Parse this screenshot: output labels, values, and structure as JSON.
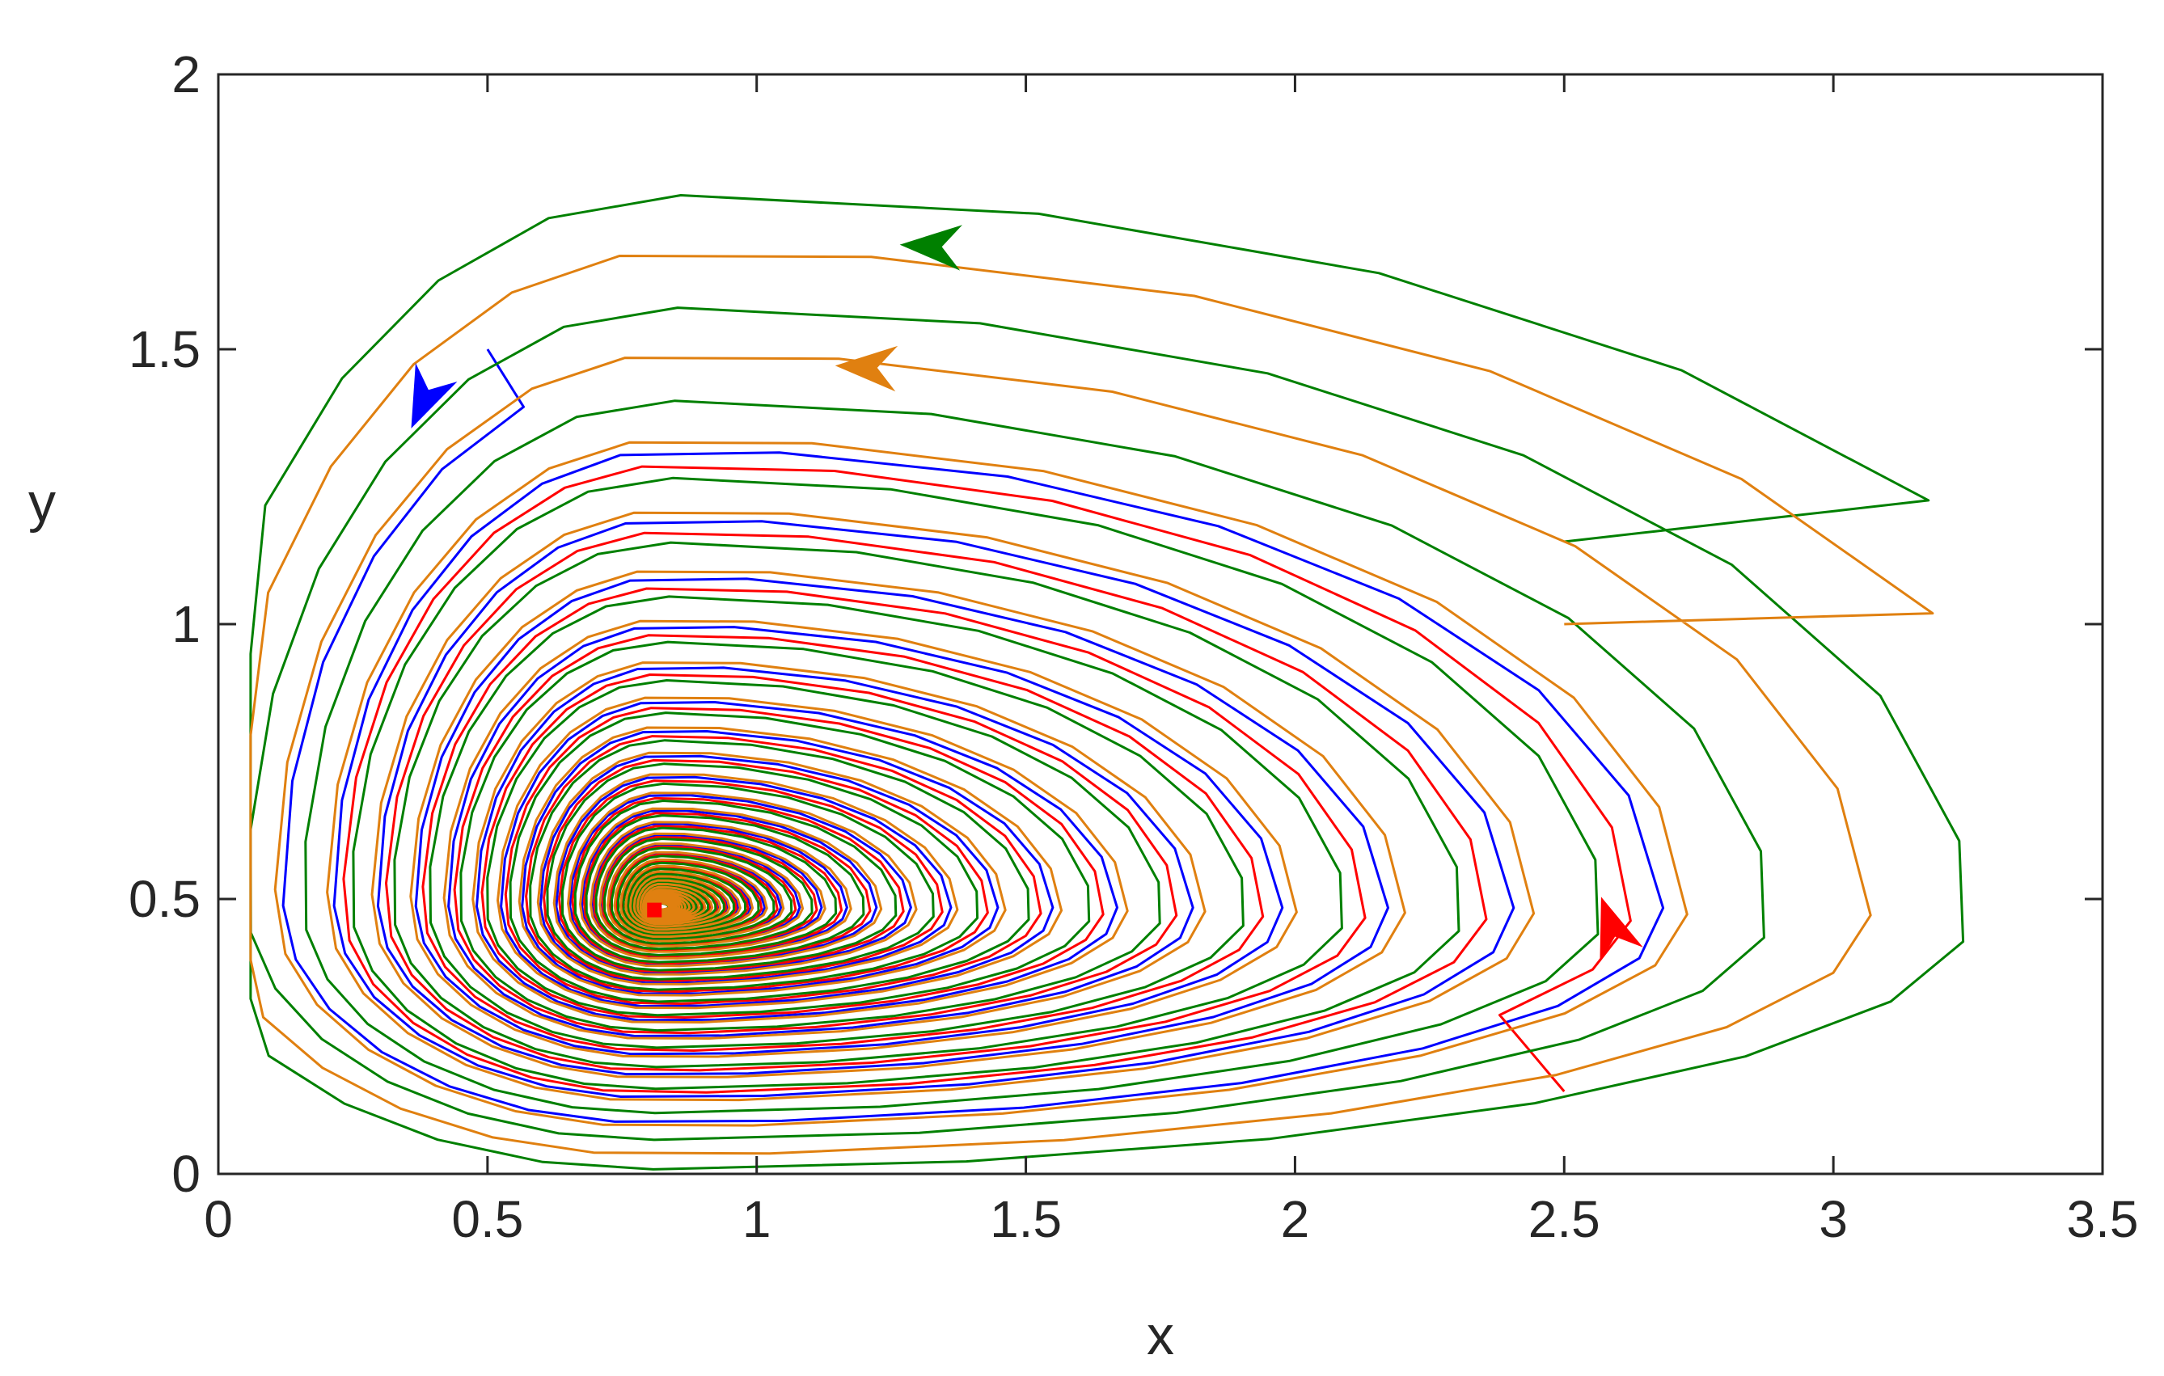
{
  "chart_data": {
    "type": "line",
    "xlabel": "x",
    "ylabel": "y",
    "xlim": [
      0,
      3.5
    ],
    "ylim": [
      0,
      2
    ],
    "xticks": [
      0,
      0.5,
      1,
      1.5,
      2,
      2.5,
      3,
      3.5
    ],
    "yticks": [
      0,
      0.5,
      1,
      1.5,
      2
    ],
    "xtick_labels": [
      "0",
      "0.5",
      "1",
      "1.5",
      "2",
      "2.5",
      "3",
      "3.5"
    ],
    "ytick_labels": [
      "0",
      "0.5",
      "1",
      "1.5",
      "2"
    ],
    "grid": false,
    "legend": "none",
    "equilibrium": {
      "x": 0.81,
      "y": 0.48,
      "color": "#ff0000"
    },
    "spiral_center": [
      0.82,
      0.485
    ],
    "series": [
      {
        "color": "#0072bd",
        "stroke": "#0000ff",
        "start": [
          0.5,
          1.5
        ],
        "rev_start": 0.87,
        "r_start": 1.12,
        "decay": 0.0054,
        "theta_start": 1.93
      },
      {
        "color": "#ff0000",
        "stroke": "#ff0000",
        "start": [
          2.5,
          0.15
        ],
        "rev_start": 0.09,
        "r_start": 1.0,
        "decay": 0.0054,
        "theta_start": -0.55
      },
      {
        "color": "#008000",
        "stroke": "#008000",
        "start": [
          2.5,
          1.15
        ],
        "rev_start": 0.0,
        "r_start": 1.45,
        "decay": 0.0054,
        "theta_start": 0.59
      },
      {
        "color": "#d95319",
        "stroke": "#e08010",
        "start": [
          2.5,
          1.0
        ],
        "rev_start": 0.05,
        "r_start": 1.36,
        "decay": 0.0054,
        "theta_start": 0.45
      }
    ],
    "arrows": [
      {
        "series": 0,
        "x": 0.36,
        "y": 1.36,
        "dir": [
          -0.45,
          -1
        ]
      },
      {
        "series": 1,
        "x": 2.57,
        "y": 0.5,
        "dir": [
          -0.35,
          1
        ]
      },
      {
        "series": 2,
        "x": 1.27,
        "y": 1.69,
        "dir": [
          -1,
          0.05
        ]
      },
      {
        "series": 3,
        "x": 1.15,
        "y": 1.47,
        "dir": [
          -1,
          0.05
        ]
      }
    ]
  }
}
